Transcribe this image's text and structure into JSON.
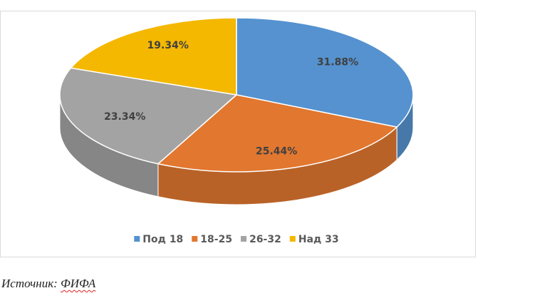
{
  "chart_data": {
    "type": "pie3d",
    "categories": [
      "Под 18",
      "18-25",
      "26-32",
      "Над 33"
    ],
    "values": [
      31.88,
      25.44,
      23.34,
      19.34
    ],
    "value_labels": [
      "31.88%",
      "25.44%",
      "23.34%",
      "19.34%"
    ],
    "colors": [
      "#5592cf",
      "#e2772f",
      "#a3a3a3",
      "#f4b800"
    ],
    "legend": "bottom"
  },
  "source": {
    "label": "Источник:",
    "name": "ФИФА"
  }
}
